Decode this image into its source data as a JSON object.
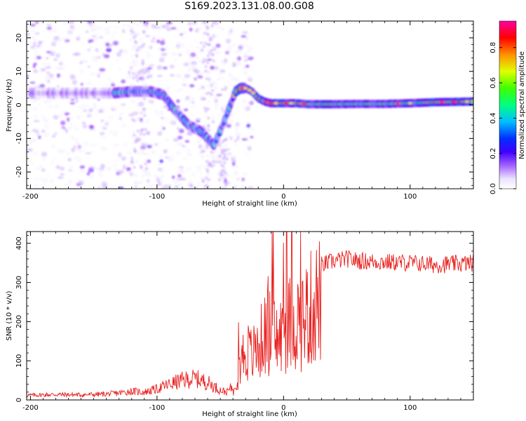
{
  "title": "S169.2023.131.08.00.G08",
  "chart_data": [
    {
      "type": "heatmap",
      "xlabel": "Height of straight line (km)",
      "ylabel": "Frequency (Hz)",
      "xlim": [
        -203,
        150
      ],
      "ylim": [
        -25,
        25
      ],
      "xticks": [
        -200,
        -100,
        0,
        100
      ],
      "yticks": [
        -20,
        -10,
        0,
        10,
        20
      ],
      "colorbar": {
        "label": "Normalized spectral amplitude",
        "range": [
          0,
          0.95
        ],
        "ticks": [
          "0.0",
          "0.2",
          "0.4",
          "0.6",
          "0.8"
        ],
        "tick_values": [
          0.0,
          0.2,
          0.4,
          0.6,
          0.8
        ],
        "colormap": [
          "#ffffff",
          "#6a00ff",
          "#0000ff",
          "#00e0ff",
          "#00ff00",
          "#ffff00",
          "#ff8000",
          "#ff0000",
          "#ff00a0"
        ]
      },
      "ridge": {
        "x": [
          -135,
          -120,
          -105,
          -95,
          -85,
          -75,
          -65,
          -55,
          -48,
          -42,
          -38,
          -34,
          -30,
          -25,
          -20,
          -15,
          -10,
          0,
          10,
          20,
          40,
          60,
          80,
          100,
          120,
          150
        ],
        "frequency": [
          3.5,
          4,
          4,
          3,
          -2,
          -6,
          -8,
          -12,
          -6,
          0,
          4,
          5,
          5,
          4,
          2,
          1,
          0.5,
          0.5,
          0.5,
          0.2,
          0.2,
          0.3,
          0.3,
          0.5,
          0.8,
          1.0
        ]
      }
    },
    {
      "type": "line",
      "xlabel": "Height of straight line (km)",
      "ylabel": "SNR (10 * v/v)",
      "xlim": [
        -203,
        150
      ],
      "ylim": [
        0,
        430
      ],
      "xticks": [
        -200,
        -100,
        0,
        100
      ],
      "yticks": [
        0,
        100,
        200,
        300,
        400
      ],
      "color": "#e8201e",
      "series": [
        {
          "x": [
            -200,
            -180,
            -160,
            -140,
            -130,
            -120,
            -110,
            -100,
            -90,
            -80,
            -70,
            -60,
            -50,
            -45,
            -40,
            -35,
            -30,
            -25,
            -20,
            -15,
            -10,
            -5,
            0,
            5,
            10,
            15,
            20,
            25,
            30,
            40,
            50,
            60,
            80,
            100,
            120,
            140,
            150
          ],
          "values": [
            12,
            14,
            13,
            15,
            18,
            22,
            20,
            28,
            40,
            50,
            55,
            45,
            25,
            20,
            35,
            120,
            170,
            150,
            180,
            220,
            240,
            200,
            230,
            260,
            270,
            275,
            300,
            330,
            345,
            355,
            360,
            355,
            352,
            350,
            345,
            348,
            350
          ]
        }
      ]
    }
  ]
}
